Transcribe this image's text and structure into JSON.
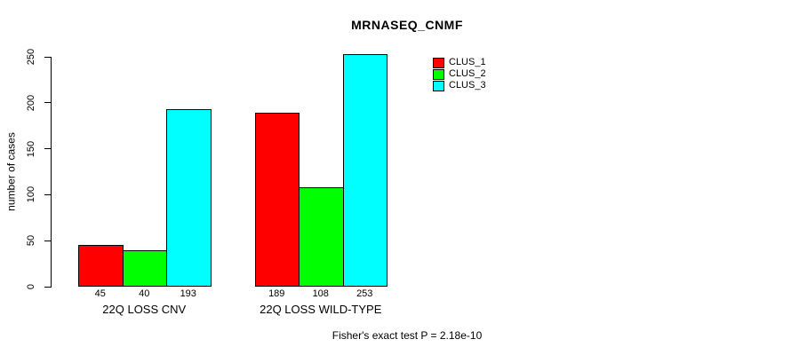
{
  "title": "MRNASEQ_CNMF",
  "chart_data": {
    "type": "bar",
    "title": "MRNASEQ_CNMF",
    "xlabel": "",
    "ylabel": "number of cases",
    "categories": [
      "22Q LOSS CNV",
      "22Q LOSS WILD-TYPE"
    ],
    "series": [
      {
        "name": "CLUS_1",
        "color": "#ff0000",
        "values": [
          45,
          189
        ]
      },
      {
        "name": "CLUS_2",
        "color": "#00ff00",
        "values": [
          40,
          108
        ]
      },
      {
        "name": "CLUS_3",
        "color": "#00ffff",
        "values": [
          193,
          253
        ]
      }
    ],
    "bar_value_labels": [
      [
        45,
        40,
        193
      ],
      [
        189,
        108,
        253
      ]
    ],
    "yticks": [
      0,
      50,
      100,
      150,
      200,
      250
    ],
    "ylim": [
      0,
      250
    ],
    "grid": false,
    "legend_position": "top-right-inside",
    "annotation": "Fisher's exact test P = 2.18e-10"
  }
}
